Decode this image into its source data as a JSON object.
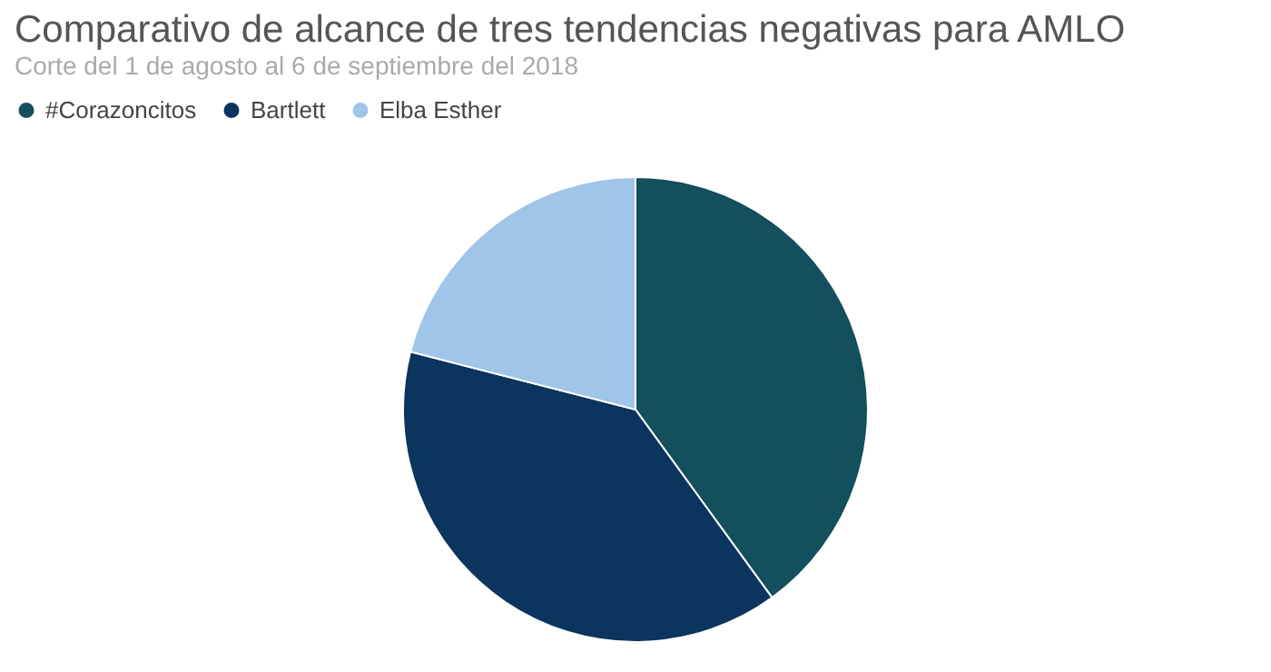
{
  "chart_data": {
    "type": "pie",
    "title": "Comparativo de alcance de tres tendencias negativas para AMLO",
    "subtitle": "Corte del 1 de agosto al 6 de septiembre del 2018",
    "categories": [
      "#Corazoncitos",
      "Bartlett",
      "Elba Esther"
    ],
    "values": [
      40,
      39,
      21
    ],
    "colors": [
      "#134f5c",
      "#0b345e",
      "#9fc5e8"
    ],
    "legend": "top"
  }
}
